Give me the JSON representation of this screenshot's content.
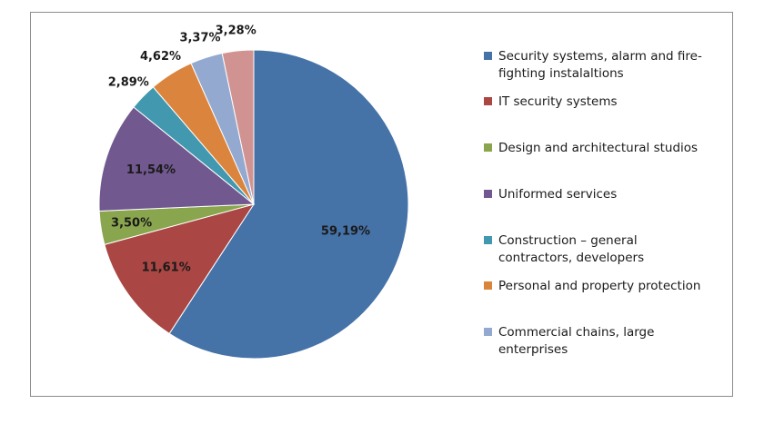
{
  "chart_data": {
    "type": "pie",
    "slices": [
      {
        "name": "Security systems, alarm and fire-fighting instalaltions",
        "value": 59.19,
        "label": "59,19%",
        "color": "#4572A7"
      },
      {
        "name": "IT security systems",
        "value": 11.61,
        "label": "11,61%",
        "color": "#AA4643"
      },
      {
        "name": "Design and architectural studios",
        "value": 3.5,
        "label": "3,50%",
        "color": "#89A54E"
      },
      {
        "name": "Uniformed services",
        "value": 11.54,
        "label": "11,54%",
        "color": "#71588F"
      },
      {
        "name": "Construction – general contractors, developers",
        "value": 2.89,
        "label": "2,89%",
        "color": "#4198AF"
      },
      {
        "name": "Personal and property protection",
        "value": 4.62,
        "label": "4,62%",
        "color": "#DB843D"
      },
      {
        "name": "Commercial chains, large enterprises",
        "value": 3.37,
        "label": "3,37%",
        "color": "#93A9CF"
      },
      {
        "name": "",
        "value": 3.28,
        "label": "3,28%",
        "color": "#D19392"
      }
    ],
    "legend_position": "right",
    "start_angle": "12 o'clock",
    "direction": "clockwise"
  },
  "legend": {
    "items": [
      {
        "line1": "Security systems, alarm and fire-",
        "line2": "fighting instalaltions",
        "color": "#4572A7"
      },
      {
        "line1": "IT security systems",
        "line2": "",
        "color": "#AA4643"
      },
      {
        "line1": "Design and architectural studios",
        "line2": "",
        "color": "#89A54E"
      },
      {
        "line1": "Uniformed services",
        "line2": "",
        "color": "#71588F"
      },
      {
        "line1": "Construction – general",
        "line2": "contractors, developers",
        "color": "#4198AF"
      },
      {
        "line1": "Personal and property protection",
        "line2": "",
        "color": "#DB843D"
      },
      {
        "line1": "Commercial chains, large",
        "line2": "enterprises",
        "color": "#93A9CF"
      }
    ]
  }
}
